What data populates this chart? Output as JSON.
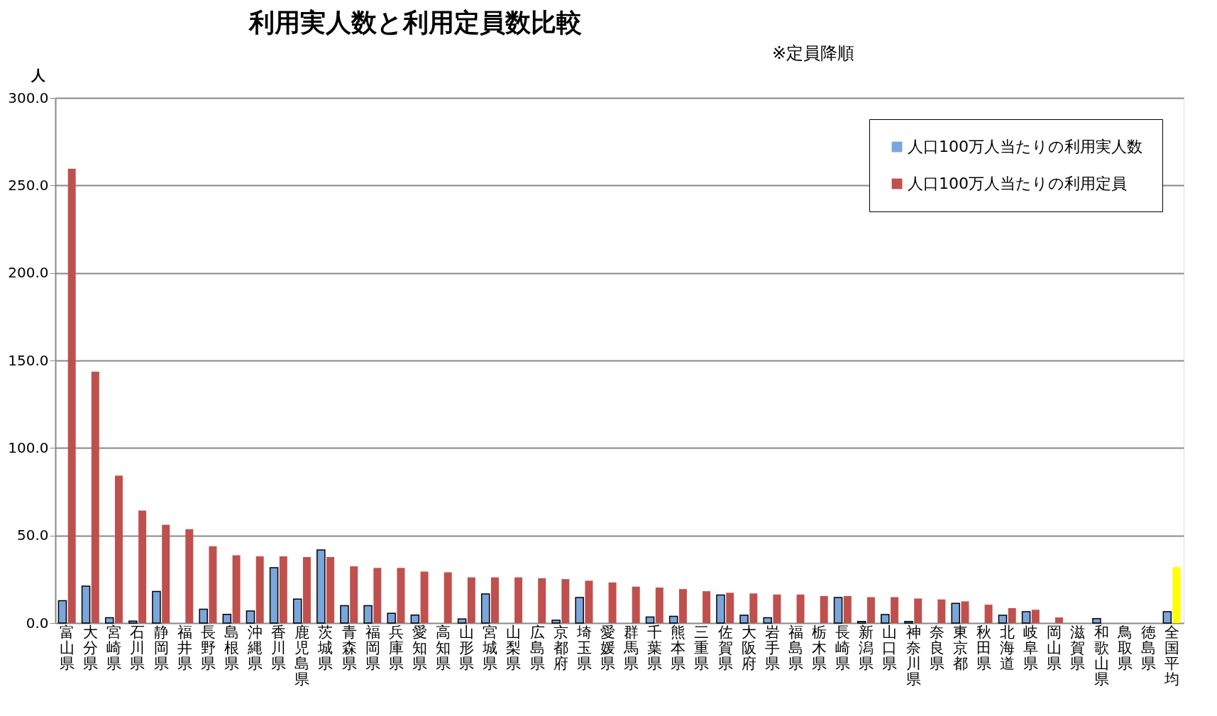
{
  "chart_data": {
    "type": "bar",
    "title": "利用実人数と利用定員数比較",
    "subtitle": "※定員降順",
    "ylabel": "人",
    "categories": [
      "富山県",
      "大分県",
      "宮崎県",
      "石川県",
      "静岡県",
      "福井県",
      "長野県",
      "島根県",
      "沖縄県",
      "香川県",
      "鹿児島県",
      "茨城県",
      "青森県",
      "福岡県",
      "兵庫県",
      "愛知県",
      "高知県",
      "山形県",
      "宮城県",
      "山梨県",
      "広島県",
      "京都府",
      "埼玉県",
      "愛媛県",
      "群馬県",
      "千葉県",
      "熊本県",
      "三重県",
      "佐賀県",
      "大阪府",
      "岩手県",
      "福島県",
      "栃木県",
      "長崎県",
      "新潟県",
      "山口県",
      "神奈川県",
      "奈良県",
      "東京都",
      "秋田県",
      "北海道",
      "岐阜県",
      "岡山県",
      "滋賀県",
      "和歌山県",
      "鳥取県",
      "徳島県",
      "全国平均"
    ],
    "series": [
      {
        "name": "人口100万人当たりの利用実人数",
        "color": "#7aa6dc",
        "values": [
          12.8,
          21.1,
          3.0,
          1.1,
          18.0,
          null,
          7.9,
          5.0,
          6.9,
          31.6,
          13.7,
          41.8,
          9.9,
          9.9,
          5.6,
          4.6,
          null,
          2.3,
          16.6,
          null,
          null,
          1.6,
          14.6,
          null,
          null,
          3.4,
          3.9,
          null,
          16.0,
          4.5,
          3.0,
          null,
          null,
          14.6,
          0.9,
          4.9,
          0.9,
          null,
          11.2,
          null,
          4.5,
          6.5,
          null,
          null,
          2.5,
          null,
          null,
          6.5
        ]
      },
      {
        "name": "人口100万人当たりの利用定員",
        "color": "#c0504d",
        "colors": [
          "#c0504d",
          "#c0504d",
          "#c0504d",
          "#c0504d",
          "#c0504d",
          "#c0504d",
          "#c0504d",
          "#c0504d",
          "#c0504d",
          "#c0504d",
          "#c0504d",
          "#c0504d",
          "#c0504d",
          "#c0504d",
          "#c0504d",
          "#c0504d",
          "#c0504d",
          "#c0504d",
          "#c0504d",
          "#c0504d",
          "#c0504d",
          "#c0504d",
          "#c0504d",
          "#c0504d",
          "#c0504d",
          "#c0504d",
          "#c0504d",
          "#c0504d",
          "#c0504d",
          "#c0504d",
          "#c0504d",
          "#c0504d",
          "#c0504d",
          "#c0504d",
          "#c0504d",
          "#c0504d",
          "#c0504d",
          "#c0504d",
          "#c0504d",
          "#c0504d",
          "#c0504d",
          "#c0504d",
          "#c0504d",
          "#c0504d",
          "#c0504d",
          "#c0504d",
          "#c0504d",
          "#ffff00"
        ],
        "values": [
          259.6,
          143.6,
          84.2,
          64.3,
          56.1,
          53.6,
          43.9,
          38.7,
          38.1,
          38.1,
          37.7,
          37.7,
          32.4,
          31.5,
          31.5,
          29.4,
          29.0,
          26.1,
          26.1,
          26.1,
          25.6,
          25.1,
          24.2,
          23.2,
          20.8,
          20.3,
          19.4,
          18.2,
          17.3,
          16.9,
          16.3,
          16.3,
          15.4,
          15.4,
          14.8,
          14.8,
          14.0,
          13.5,
          12.4,
          10.5,
          8.5,
          7.6,
          3.2,
          null,
          null,
          null,
          null,
          32.0
        ]
      }
    ],
    "ylim": [
      0,
      300
    ],
    "yticks": [
      {
        "value": 0,
        "label": "0.0"
      },
      {
        "value": 50,
        "label": "50.0"
      },
      {
        "value": 100,
        "label": "100.0"
      },
      {
        "value": 150,
        "label": "150.0"
      },
      {
        "value": 200,
        "label": "200.0"
      },
      {
        "value": 250,
        "label": "250.0"
      },
      {
        "value": 300,
        "label": "300.0"
      }
    ],
    "grid": "y",
    "legend": "top right"
  }
}
